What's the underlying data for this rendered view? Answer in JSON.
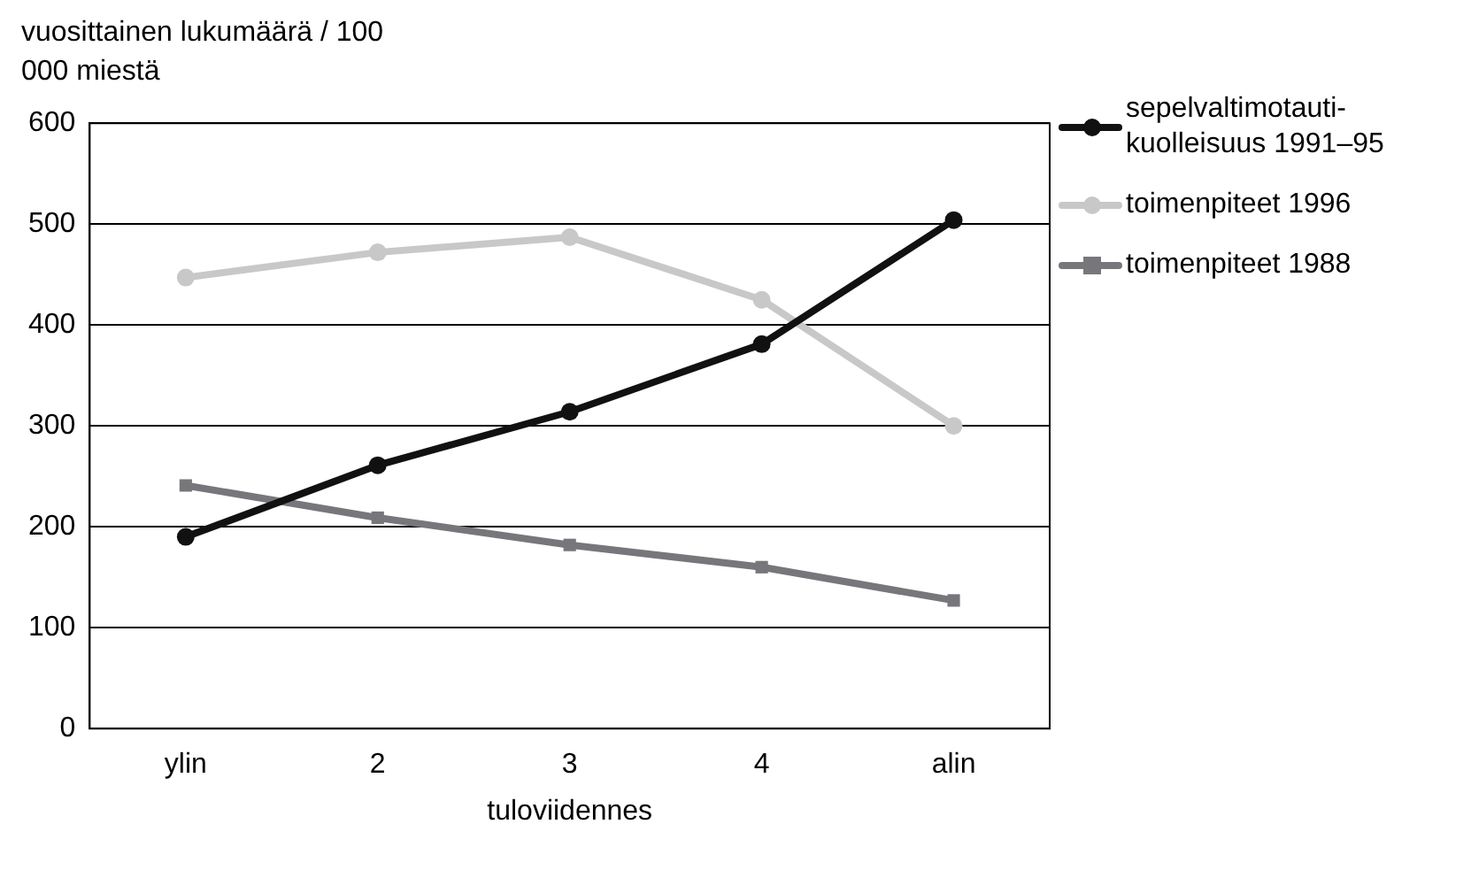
{
  "chart_data": {
    "type": "line",
    "ylabel": "vuosittainen lukumäärä / 100 000 miestä",
    "xlabel": "tuloviidennes",
    "categories": [
      "ylin",
      "2",
      "3",
      "4",
      "alin"
    ],
    "series": [
      {
        "name": "sepelvaltimotauti-kuolleisuus 1991–95",
        "color": "#111111",
        "marker": "circle",
        "values": [
          190,
          261,
          314,
          381,
          504
        ]
      },
      {
        "name": "toimenpiteet 1996",
        "color": "#c8c8c8",
        "marker": "circle",
        "values": [
          447,
          472,
          487,
          425,
          300
        ]
      },
      {
        "name": "toimenpiteet 1988",
        "color": "#77777b",
        "marker": "square",
        "values": [
          241,
          209,
          182,
          160,
          127
        ]
      }
    ],
    "ylim": [
      0,
      600
    ],
    "yticks": [
      0,
      100,
      200,
      300,
      400,
      500,
      600
    ],
    "grid": "y",
    "legend": "right",
    "line_style": "solid"
  }
}
